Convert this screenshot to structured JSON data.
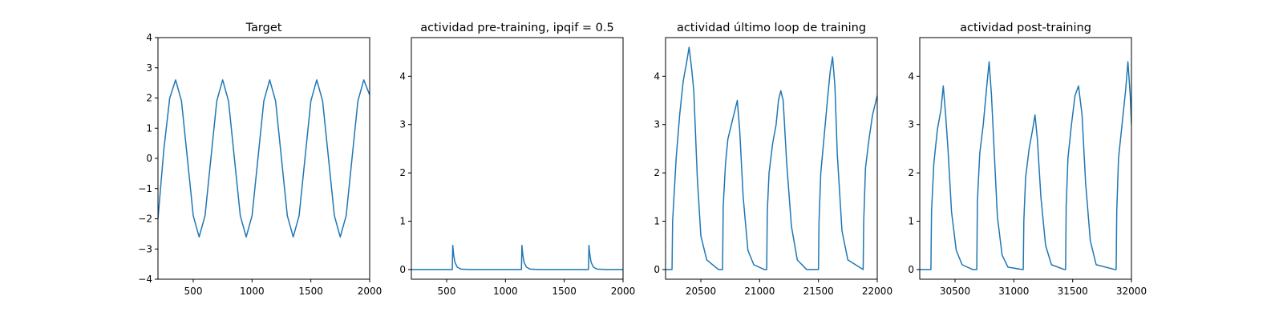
{
  "chart_data": [
    {
      "type": "line",
      "title": "Target",
      "xlim": [
        200,
        2000
      ],
      "ylim": [
        -4,
        4
      ],
      "xticks": [
        500,
        1000,
        1500,
        2000
      ],
      "yticks": [
        -4,
        -3,
        -2,
        -1,
        0,
        1,
        2,
        3,
        4
      ],
      "line_color": "#1f77b4",
      "series": [
        {
          "x": [
            200,
            250,
            300,
            350,
            400,
            450,
            500,
            550,
            600,
            650,
            700,
            750,
            800,
            850,
            900,
            950,
            1000,
            1050,
            1100,
            1150,
            1200,
            1250,
            1300,
            1350,
            1400,
            1450,
            1500,
            1550,
            1600,
            1650,
            1700,
            1750,
            1800,
            1850,
            1900,
            1950,
            2000
          ],
          "y": [
            -2.0,
            0.3,
            2.0,
            2.6,
            1.9,
            0.0,
            -1.9,
            -2.6,
            -1.9,
            0.0,
            1.9,
            2.6,
            1.9,
            0.0,
            -1.9,
            -2.6,
            -1.9,
            0.0,
            1.9,
            2.6,
            1.9,
            0.0,
            -1.9,
            -2.6,
            -1.9,
            0.0,
            1.9,
            2.6,
            1.9,
            0.0,
            -1.9,
            -2.6,
            -1.9,
            0.0,
            1.9,
            2.6,
            2.1
          ]
        }
      ]
    },
    {
      "type": "line",
      "title": "actividad pre-training, ipqif = 0.5",
      "xlim": [
        200,
        2000
      ],
      "ylim": [
        -0.2,
        4.8
      ],
      "xticks": [
        500,
        1000,
        1500,
        2000
      ],
      "yticks": [
        0,
        1,
        2,
        3,
        4
      ],
      "line_color": "#1f77b4",
      "series": [
        {
          "x": [
            200,
            548,
            552,
            560,
            570,
            590,
            620,
            700,
            1136,
            1140,
            1148,
            1158,
            1178,
            1208,
            1290,
            1706,
            1710,
            1718,
            1728,
            1748,
            1778,
            1860,
            2000
          ],
          "y": [
            0,
            0,
            0.5,
            0.3,
            0.15,
            0.05,
            0.01,
            0,
            0,
            0.5,
            0.3,
            0.15,
            0.05,
            0.01,
            0,
            0,
            0.5,
            0.3,
            0.15,
            0.05,
            0.01,
            0,
            0
          ]
        }
      ]
    },
    {
      "type": "line",
      "title": "actividad último loop de training",
      "xlim": [
        20200,
        22000
      ],
      "ylim": [
        -0.2,
        4.8
      ],
      "xticks": [
        20500,
        21000,
        21500,
        22000
      ],
      "yticks": [
        0,
        1,
        2,
        3,
        4
      ],
      "line_color": "#1f77b4",
      "series": [
        {
          "x": [
            20200,
            20255,
            20260,
            20290,
            20320,
            20350,
            20380,
            20400,
            20420,
            20440,
            20470,
            20500,
            20550,
            20650,
            20685,
            20690,
            20710,
            20730,
            20760,
            20790,
            20810,
            20830,
            20860,
            20900,
            20950,
            21040,
            21060,
            21065,
            21080,
            21110,
            21140,
            21160,
            21180,
            21200,
            21230,
            21270,
            21320,
            21400,
            21500,
            21505,
            21520,
            21550,
            21580,
            21600,
            21620,
            21640,
            21660,
            21700,
            21750,
            21880,
            21885,
            21900,
            21930,
            21960,
            21990,
            22000
          ],
          "y": [
            0,
            0,
            1.0,
            2.3,
            3.2,
            3.9,
            4.3,
            4.6,
            4.2,
            3.7,
            1.9,
            0.7,
            0.2,
            0,
            0,
            1.3,
            2.2,
            2.7,
            3.0,
            3.3,
            3.5,
            2.9,
            1.5,
            0.4,
            0.1,
            0,
            0,
            1.2,
            2.0,
            2.6,
            3.0,
            3.5,
            3.7,
            3.5,
            2.2,
            0.9,
            0.2,
            0,
            0,
            1.0,
            2.0,
            2.8,
            3.6,
            4.1,
            4.4,
            3.8,
            2.4,
            0.8,
            0.2,
            0,
            1.0,
            2.1,
            2.7,
            3.2,
            3.5,
            3.6
          ]
        }
      ]
    },
    {
      "type": "line",
      "title": "actividad post-training",
      "xlim": [
        30200,
        32000
      ],
      "ylim": [
        -0.2,
        4.8
      ],
      "xticks": [
        30500,
        31000,
        31500,
        32000
      ],
      "yticks": [
        0,
        1,
        2,
        3,
        4
      ],
      "line_color": "#1f77b4",
      "series": [
        {
          "x": [
            30200,
            30295,
            30300,
            30320,
            30350,
            30380,
            30400,
            30420,
            30440,
            30470,
            30510,
            30560,
            30650,
            30685,
            30690,
            30710,
            30740,
            30770,
            30790,
            30810,
            30830,
            30860,
            30900,
            30950,
            31070,
            31080,
            31085,
            31100,
            31130,
            31160,
            31180,
            31200,
            31230,
            31270,
            31320,
            31430,
            31440,
            31445,
            31460,
            31490,
            31520,
            31550,
            31580,
            31610,
            31650,
            31700,
            31860,
            31870,
            31875,
            31890,
            31920,
            31950,
            31970,
            31990,
            32000
          ],
          "y": [
            0,
            0,
            1.2,
            2.2,
            2.9,
            3.3,
            3.8,
            3.2,
            2.5,
            1.2,
            0.4,
            0.1,
            0,
            0,
            1.4,
            2.4,
            3.0,
            3.8,
            4.3,
            3.6,
            2.6,
            1.1,
            0.3,
            0.05,
            0,
            0,
            1.0,
            1.9,
            2.5,
            2.9,
            3.2,
            2.7,
            1.5,
            0.5,
            0.1,
            0,
            0,
            1.3,
            2.3,
            3.0,
            3.6,
            3.8,
            3.2,
            1.8,
            0.6,
            0.1,
            0,
            0,
            1.2,
            2.3,
            3.0,
            3.7,
            4.3,
            3.6,
            3.0
          ]
        }
      ]
    }
  ]
}
